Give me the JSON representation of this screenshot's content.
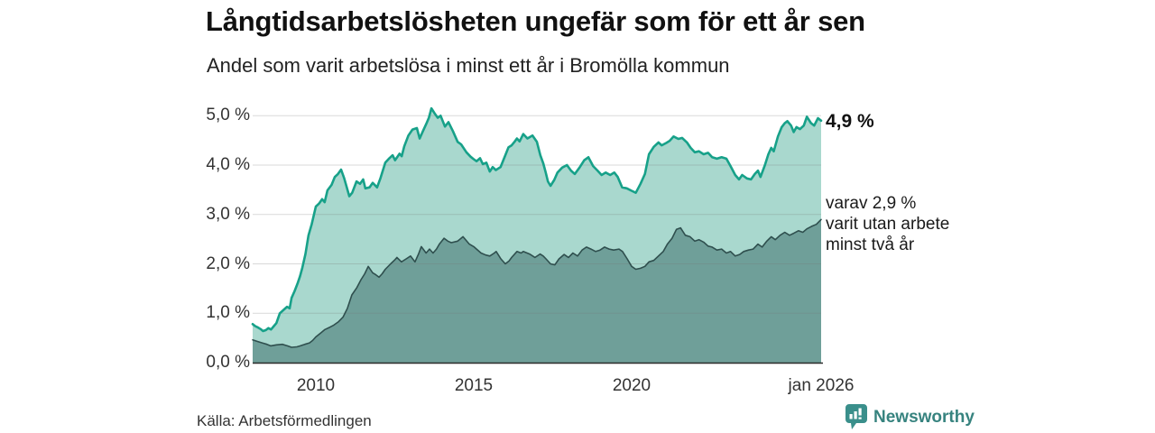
{
  "footer": {
    "source": "Källa: Arbetsförmedlingen",
    "brand": "Newsworthy",
    "brand_color": "#37837f"
  },
  "chart_data": {
    "type": "area",
    "title": "Långtidsarbetslösheten ungefär som för ett år sen",
    "subtitle": "Andel som varit arbetslösa i minst ett år i Bromölla kommun",
    "grid": "horizontal",
    "y_axis": {
      "tick_labels": [
        "0,0 %",
        "1,0 %",
        "2,0 %",
        "3,0 %",
        "4,0 %",
        "5,0 %"
      ],
      "tick_values": [
        0,
        1,
        2,
        3,
        4,
        5
      ],
      "range": [
        0,
        5.2
      ]
    },
    "x_axis": {
      "ticks": [
        {
          "label": "2010",
          "year": 2010
        },
        {
          "label": "2015",
          "year": 2015
        },
        {
          "label": "2020",
          "year": 2020
        },
        {
          "label": "jan 2026",
          "year": 2026
        }
      ],
      "range": [
        2008,
        2026
      ]
    },
    "series": [
      {
        "name": "Andel arbetslösa minst ett år",
        "end_label": "4,9 %",
        "end_value": 4.9,
        "color_fill": "#a9d8ce",
        "color_line": "#17a189",
        "points": [
          [
            2008.0,
            0.78
          ],
          [
            2008.08,
            0.74
          ],
          [
            2008.17,
            0.71
          ],
          [
            2008.25,
            0.68
          ],
          [
            2008.33,
            0.64
          ],
          [
            2008.42,
            0.66
          ],
          [
            2008.5,
            0.7
          ],
          [
            2008.58,
            0.67
          ],
          [
            2008.67,
            0.74
          ],
          [
            2008.75,
            0.8
          ],
          [
            2008.86,
            1.0
          ],
          [
            2009.0,
            1.08
          ],
          [
            2009.09,
            1.13
          ],
          [
            2009.17,
            1.1
          ],
          [
            2009.23,
            1.31
          ],
          [
            2009.33,
            1.45
          ],
          [
            2009.42,
            1.6
          ],
          [
            2009.5,
            1.75
          ],
          [
            2009.57,
            1.91
          ],
          [
            2009.67,
            2.2
          ],
          [
            2009.77,
            2.58
          ],
          [
            2009.87,
            2.8
          ],
          [
            2010.0,
            3.16
          ],
          [
            2010.1,
            3.22
          ],
          [
            2010.2,
            3.31
          ],
          [
            2010.28,
            3.25
          ],
          [
            2010.37,
            3.49
          ],
          [
            2010.5,
            3.6
          ],
          [
            2010.6,
            3.76
          ],
          [
            2010.7,
            3.82
          ],
          [
            2010.8,
            3.91
          ],
          [
            2010.9,
            3.73
          ],
          [
            2011.06,
            3.37
          ],
          [
            2011.15,
            3.44
          ],
          [
            2011.29,
            3.67
          ],
          [
            2011.4,
            3.62
          ],
          [
            2011.5,
            3.71
          ],
          [
            2011.57,
            3.53
          ],
          [
            2011.7,
            3.55
          ],
          [
            2011.8,
            3.64
          ],
          [
            2011.94,
            3.55
          ],
          [
            2012.05,
            3.74
          ],
          [
            2012.2,
            4.05
          ],
          [
            2012.33,
            4.14
          ],
          [
            2012.43,
            4.2
          ],
          [
            2012.51,
            4.1
          ],
          [
            2012.65,
            4.23
          ],
          [
            2012.72,
            4.18
          ],
          [
            2012.8,
            4.38
          ],
          [
            2012.93,
            4.6
          ],
          [
            2013.06,
            4.72
          ],
          [
            2013.2,
            4.75
          ],
          [
            2013.29,
            4.54
          ],
          [
            2013.4,
            4.7
          ],
          [
            2013.5,
            4.84
          ],
          [
            2013.58,
            4.96
          ],
          [
            2013.66,
            5.15
          ],
          [
            2013.76,
            5.05
          ],
          [
            2013.86,
            4.96
          ],
          [
            2013.95,
            5.0
          ],
          [
            2014.09,
            4.78
          ],
          [
            2014.2,
            4.87
          ],
          [
            2014.34,
            4.69
          ],
          [
            2014.49,
            4.47
          ],
          [
            2014.6,
            4.42
          ],
          [
            2014.77,
            4.26
          ],
          [
            2014.9,
            4.17
          ],
          [
            2015.0,
            4.12
          ],
          [
            2015.09,
            4.08
          ],
          [
            2015.2,
            4.14
          ],
          [
            2015.29,
            4.02
          ],
          [
            2015.4,
            4.05
          ],
          [
            2015.51,
            3.87
          ],
          [
            2015.6,
            3.96
          ],
          [
            2015.7,
            3.9
          ],
          [
            2015.85,
            3.96
          ],
          [
            2016.0,
            4.2
          ],
          [
            2016.1,
            4.36
          ],
          [
            2016.2,
            4.4
          ],
          [
            2016.3,
            4.48
          ],
          [
            2016.37,
            4.54
          ],
          [
            2016.45,
            4.48
          ],
          [
            2016.57,
            4.63
          ],
          [
            2016.7,
            4.54
          ],
          [
            2016.86,
            4.6
          ],
          [
            2017.0,
            4.47
          ],
          [
            2017.11,
            4.2
          ],
          [
            2017.2,
            4.04
          ],
          [
            2017.28,
            3.85
          ],
          [
            2017.35,
            3.67
          ],
          [
            2017.43,
            3.58
          ],
          [
            2017.55,
            3.7
          ],
          [
            2017.65,
            3.85
          ],
          [
            2017.8,
            3.95
          ],
          [
            2017.95,
            4.0
          ],
          [
            2018.08,
            3.89
          ],
          [
            2018.2,
            3.82
          ],
          [
            2018.35,
            3.95
          ],
          [
            2018.5,
            4.1
          ],
          [
            2018.63,
            4.16
          ],
          [
            2018.78,
            3.98
          ],
          [
            2018.92,
            3.89
          ],
          [
            2019.05,
            3.8
          ],
          [
            2019.18,
            3.85
          ],
          [
            2019.32,
            3.8
          ],
          [
            2019.45,
            3.85
          ],
          [
            2019.56,
            3.76
          ],
          [
            2019.7,
            3.55
          ],
          [
            2019.85,
            3.53
          ],
          [
            2020.0,
            3.48
          ],
          [
            2020.13,
            3.44
          ],
          [
            2020.28,
            3.62
          ],
          [
            2020.42,
            3.82
          ],
          [
            2020.55,
            4.22
          ],
          [
            2020.7,
            4.37
          ],
          [
            2020.85,
            4.46
          ],
          [
            2020.95,
            4.4
          ],
          [
            2021.1,
            4.45
          ],
          [
            2021.2,
            4.49
          ],
          [
            2021.33,
            4.58
          ],
          [
            2021.48,
            4.53
          ],
          [
            2021.6,
            4.55
          ],
          [
            2021.75,
            4.46
          ],
          [
            2021.87,
            4.35
          ],
          [
            2022.0,
            4.26
          ],
          [
            2022.13,
            4.28
          ],
          [
            2022.28,
            4.22
          ],
          [
            2022.42,
            4.25
          ],
          [
            2022.55,
            4.16
          ],
          [
            2022.7,
            4.13
          ],
          [
            2022.85,
            4.16
          ],
          [
            2023.0,
            4.13
          ],
          [
            2023.13,
            3.98
          ],
          [
            2023.28,
            3.8
          ],
          [
            2023.4,
            3.71
          ],
          [
            2023.5,
            3.8
          ],
          [
            2023.65,
            3.73
          ],
          [
            2023.78,
            3.71
          ],
          [
            2023.9,
            3.82
          ],
          [
            2024.0,
            3.89
          ],
          [
            2024.08,
            3.76
          ],
          [
            2024.22,
            4.0
          ],
          [
            2024.33,
            4.22
          ],
          [
            2024.42,
            4.35
          ],
          [
            2024.5,
            4.28
          ],
          [
            2024.63,
            4.58
          ],
          [
            2024.75,
            4.77
          ],
          [
            2024.85,
            4.85
          ],
          [
            2024.93,
            4.89
          ],
          [
            2025.05,
            4.8
          ],
          [
            2025.13,
            4.67
          ],
          [
            2025.22,
            4.77
          ],
          [
            2025.33,
            4.73
          ],
          [
            2025.45,
            4.8
          ],
          [
            2025.55,
            4.98
          ],
          [
            2025.68,
            4.85
          ],
          [
            2025.78,
            4.8
          ],
          [
            2025.9,
            4.95
          ],
          [
            2026.0,
            4.9
          ]
        ]
      },
      {
        "name": "varav utan arbete minst två år",
        "end_label": "varav 2,9 %\nvarit utan arbete\nminst två år",
        "end_value": 2.9,
        "color_fill": "#6f9f99",
        "color_line": "#2f4f4e",
        "points": [
          [
            2008.0,
            0.46
          ],
          [
            2008.15,
            0.43
          ],
          [
            2008.3,
            0.4
          ],
          [
            2008.45,
            0.37
          ],
          [
            2008.57,
            0.34
          ],
          [
            2008.75,
            0.36
          ],
          [
            2008.94,
            0.37
          ],
          [
            2009.1,
            0.34
          ],
          [
            2009.23,
            0.31
          ],
          [
            2009.4,
            0.32
          ],
          [
            2009.51,
            0.34
          ],
          [
            2009.65,
            0.37
          ],
          [
            2009.8,
            0.4
          ],
          [
            2009.9,
            0.45
          ],
          [
            2010.0,
            0.52
          ],
          [
            2010.15,
            0.6
          ],
          [
            2010.29,
            0.67
          ],
          [
            2010.45,
            0.72
          ],
          [
            2010.57,
            0.76
          ],
          [
            2010.72,
            0.83
          ],
          [
            2010.86,
            0.92
          ],
          [
            2011.0,
            1.1
          ],
          [
            2011.14,
            1.37
          ],
          [
            2011.3,
            1.52
          ],
          [
            2011.43,
            1.68
          ],
          [
            2011.55,
            1.8
          ],
          [
            2011.66,
            1.95
          ],
          [
            2011.8,
            1.82
          ],
          [
            2011.9,
            1.78
          ],
          [
            2012.0,
            1.73
          ],
          [
            2012.1,
            1.8
          ],
          [
            2012.2,
            1.89
          ],
          [
            2012.37,
            2.0
          ],
          [
            2012.5,
            2.08
          ],
          [
            2012.57,
            2.13
          ],
          [
            2012.71,
            2.04
          ],
          [
            2012.86,
            2.1
          ],
          [
            2013.0,
            2.16
          ],
          [
            2013.14,
            2.04
          ],
          [
            2013.25,
            2.2
          ],
          [
            2013.34,
            2.35
          ],
          [
            2013.49,
            2.22
          ],
          [
            2013.6,
            2.3
          ],
          [
            2013.71,
            2.22
          ],
          [
            2013.82,
            2.3
          ],
          [
            2013.91,
            2.4
          ],
          [
            2014.06,
            2.52
          ],
          [
            2014.18,
            2.46
          ],
          [
            2014.29,
            2.43
          ],
          [
            2014.49,
            2.46
          ],
          [
            2014.66,
            2.55
          ],
          [
            2014.86,
            2.4
          ],
          [
            2015.0,
            2.35
          ],
          [
            2015.09,
            2.3
          ],
          [
            2015.23,
            2.22
          ],
          [
            2015.38,
            2.18
          ],
          [
            2015.51,
            2.16
          ],
          [
            2015.65,
            2.22
          ],
          [
            2015.71,
            2.25
          ],
          [
            2015.86,
            2.1
          ],
          [
            2016.0,
            2.0
          ],
          [
            2016.12,
            2.06
          ],
          [
            2016.2,
            2.13
          ],
          [
            2016.37,
            2.25
          ],
          [
            2016.5,
            2.22
          ],
          [
            2016.57,
            2.25
          ],
          [
            2016.77,
            2.2
          ],
          [
            2016.94,
            2.13
          ],
          [
            2017.1,
            2.2
          ],
          [
            2017.2,
            2.16
          ],
          [
            2017.29,
            2.1
          ],
          [
            2017.43,
            2.0
          ],
          [
            2017.57,
            1.98
          ],
          [
            2017.7,
            2.1
          ],
          [
            2017.86,
            2.19
          ],
          [
            2018.0,
            2.13
          ],
          [
            2018.14,
            2.22
          ],
          [
            2018.29,
            2.16
          ],
          [
            2018.43,
            2.28
          ],
          [
            2018.57,
            2.34
          ],
          [
            2018.71,
            2.3
          ],
          [
            2018.86,
            2.25
          ],
          [
            2019.0,
            2.28
          ],
          [
            2019.14,
            2.34
          ],
          [
            2019.29,
            2.3
          ],
          [
            2019.43,
            2.28
          ],
          [
            2019.6,
            2.3
          ],
          [
            2019.71,
            2.25
          ],
          [
            2019.86,
            2.1
          ],
          [
            2020.0,
            1.95
          ],
          [
            2020.13,
            1.89
          ],
          [
            2020.28,
            1.91
          ],
          [
            2020.42,
            1.95
          ],
          [
            2020.55,
            2.04
          ],
          [
            2020.7,
            2.07
          ],
          [
            2020.85,
            2.16
          ],
          [
            2021.0,
            2.25
          ],
          [
            2021.13,
            2.4
          ],
          [
            2021.28,
            2.52
          ],
          [
            2021.42,
            2.7
          ],
          [
            2021.55,
            2.73
          ],
          [
            2021.7,
            2.58
          ],
          [
            2021.85,
            2.55
          ],
          [
            2022.0,
            2.46
          ],
          [
            2022.13,
            2.49
          ],
          [
            2022.28,
            2.44
          ],
          [
            2022.42,
            2.36
          ],
          [
            2022.55,
            2.34
          ],
          [
            2022.7,
            2.28
          ],
          [
            2022.85,
            2.3
          ],
          [
            2023.0,
            2.22
          ],
          [
            2023.13,
            2.25
          ],
          [
            2023.28,
            2.16
          ],
          [
            2023.42,
            2.19
          ],
          [
            2023.55,
            2.25
          ],
          [
            2023.7,
            2.28
          ],
          [
            2023.85,
            2.3
          ],
          [
            2024.0,
            2.4
          ],
          [
            2024.13,
            2.34
          ],
          [
            2024.28,
            2.46
          ],
          [
            2024.42,
            2.55
          ],
          [
            2024.55,
            2.49
          ],
          [
            2024.7,
            2.58
          ],
          [
            2024.85,
            2.64
          ],
          [
            2025.0,
            2.58
          ],
          [
            2025.13,
            2.62
          ],
          [
            2025.28,
            2.67
          ],
          [
            2025.42,
            2.64
          ],
          [
            2025.55,
            2.71
          ],
          [
            2025.7,
            2.76
          ],
          [
            2025.85,
            2.8
          ],
          [
            2026.0,
            2.9
          ]
        ]
      }
    ],
    "colors": {
      "gridline": "#dcdcdc",
      "axis_line": "#2b2b2b",
      "text": "#333333"
    }
  }
}
